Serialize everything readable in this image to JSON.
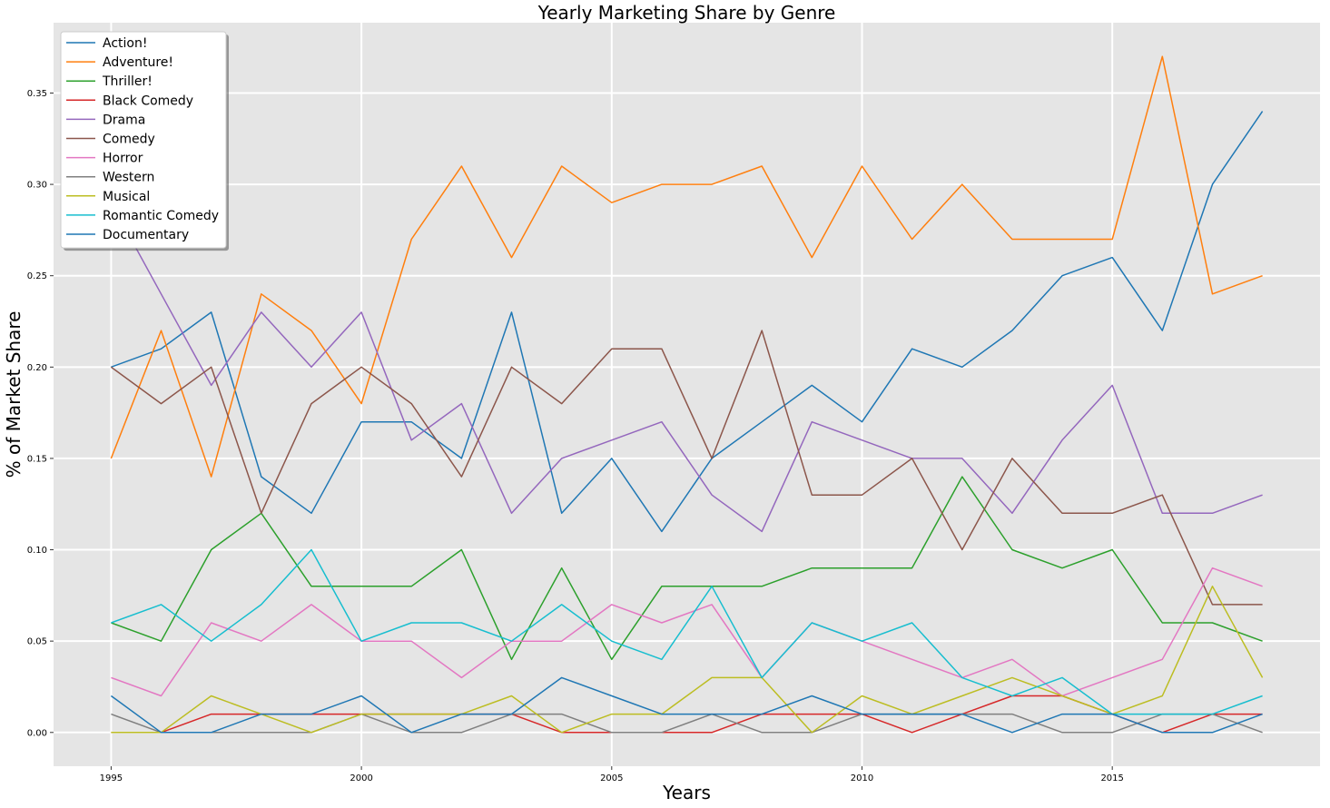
{
  "chart_data": {
    "type": "line",
    "title": "Yearly Marketing Share by Genre",
    "xlabel": "Years",
    "ylabel": "% of Market Share",
    "xlim": [
      1993.85,
      2019.15
    ],
    "ylim": [
      -0.0185,
      0.3885
    ],
    "xticks": [
      1995,
      2000,
      2005,
      2010,
      2015
    ],
    "yticks": [
      0.0,
      0.05,
      0.1,
      0.15,
      0.2,
      0.25,
      0.3,
      0.35
    ],
    "ytick_labels": [
      "0.00",
      "0.05",
      "0.10",
      "0.15",
      "0.20",
      "0.25",
      "0.30",
      "0.35"
    ],
    "grid": true,
    "background": "#e5e5e5",
    "legend_position": "top-left",
    "x": [
      1995,
      1996,
      1997,
      1998,
      1999,
      2000,
      2001,
      2002,
      2003,
      2004,
      2005,
      2006,
      2007,
      2008,
      2009,
      2010,
      2011,
      2012,
      2013,
      2014,
      2015,
      2016,
      2017,
      2018
    ],
    "series": [
      {
        "name": "Action!",
        "color": "#1f77b4",
        "values": [
          0.2,
          0.21,
          0.23,
          0.14,
          0.12,
          0.17,
          0.17,
          0.15,
          0.23,
          0.12,
          0.15,
          0.11,
          0.15,
          0.17,
          0.19,
          0.17,
          0.21,
          0.2,
          0.22,
          0.25,
          0.26,
          0.22,
          0.3,
          0.34
        ]
      },
      {
        "name": "Adventure!",
        "color": "#ff7f0e",
        "values": [
          0.15,
          0.22,
          0.14,
          0.24,
          0.22,
          0.18,
          0.27,
          0.31,
          0.26,
          0.31,
          0.29,
          0.3,
          0.3,
          0.31,
          0.26,
          0.31,
          0.27,
          0.3,
          0.27,
          0.27,
          0.27,
          0.37,
          0.24,
          0.25
        ]
      },
      {
        "name": "Thriller!",
        "color": "#2ca02c",
        "values": [
          0.06,
          0.05,
          0.1,
          0.12,
          0.08,
          0.08,
          0.08,
          0.1,
          0.04,
          0.09,
          0.04,
          0.08,
          0.08,
          0.08,
          0.09,
          0.09,
          0.09,
          0.14,
          0.1,
          0.09,
          0.1,
          0.06,
          0.06,
          0.05
        ]
      },
      {
        "name": "Black Comedy",
        "color": "#d62728",
        "values": [
          0.0,
          0.0,
          0.01,
          0.01,
          0.01,
          0.01,
          0.01,
          0.01,
          0.01,
          0.0,
          0.0,
          0.0,
          0.0,
          0.01,
          0.01,
          0.01,
          0.0,
          0.01,
          0.02,
          0.02,
          0.01,
          0.0,
          0.01,
          0.01
        ]
      },
      {
        "name": "Drama",
        "color": "#9467bd",
        "values": [
          0.29,
          0.24,
          0.19,
          0.23,
          0.2,
          0.23,
          0.16,
          0.18,
          0.12,
          0.15,
          0.16,
          0.17,
          0.13,
          0.11,
          0.17,
          0.16,
          0.15,
          0.15,
          0.12,
          0.16,
          0.19,
          0.12,
          0.12,
          0.13
        ]
      },
      {
        "name": "Comedy",
        "color": "#8c564b",
        "values": [
          0.2,
          0.18,
          0.2,
          0.12,
          0.18,
          0.2,
          0.18,
          0.14,
          0.2,
          0.18,
          0.21,
          0.21,
          0.15,
          0.22,
          0.13,
          0.13,
          0.15,
          0.1,
          0.15,
          0.12,
          0.12,
          0.13,
          0.07,
          0.07
        ]
      },
      {
        "name": "Horror",
        "color": "#e377c2",
        "values": [
          0.03,
          0.02,
          0.06,
          0.05,
          0.07,
          0.05,
          0.05,
          0.03,
          0.05,
          0.05,
          0.07,
          0.06,
          0.07,
          0.03,
          0.06,
          0.05,
          0.04,
          0.03,
          0.04,
          0.02,
          0.03,
          0.04,
          0.09,
          0.08
        ]
      },
      {
        "name": "Western",
        "color": "#7f7f7f",
        "values": [
          0.01,
          0.0,
          0.0,
          0.0,
          0.0,
          0.01,
          0.0,
          0.0,
          0.01,
          0.01,
          0.0,
          0.0,
          0.01,
          0.0,
          0.0,
          0.01,
          0.01,
          0.01,
          0.01,
          0.0,
          0.0,
          0.01,
          0.01,
          0.0
        ]
      },
      {
        "name": "Musical",
        "color": "#bcbd22",
        "values": [
          0.0,
          0.0,
          0.02,
          0.01,
          0.0,
          0.01,
          0.01,
          0.01,
          0.02,
          0.0,
          0.01,
          0.01,
          0.03,
          0.03,
          0.0,
          0.02,
          0.01,
          0.02,
          0.03,
          0.02,
          0.01,
          0.02,
          0.08,
          0.03
        ]
      },
      {
        "name": "Romantic Comedy",
        "color": "#17becf",
        "values": [
          0.06,
          0.07,
          0.05,
          0.07,
          0.1,
          0.05,
          0.06,
          0.06,
          0.05,
          0.07,
          0.05,
          0.04,
          0.08,
          0.03,
          0.06,
          0.05,
          0.06,
          0.03,
          0.02,
          0.03,
          0.01,
          0.01,
          0.01,
          0.02
        ]
      },
      {
        "name": "Documentary",
        "color": "#1f77b4",
        "values": [
          0.02,
          0.0,
          0.0,
          0.01,
          0.01,
          0.02,
          0.0,
          0.01,
          0.01,
          0.03,
          0.02,
          0.01,
          0.01,
          0.01,
          0.02,
          0.01,
          0.01,
          0.01,
          0.0,
          0.01,
          0.01,
          0.0,
          0.0,
          0.01
        ]
      }
    ]
  }
}
